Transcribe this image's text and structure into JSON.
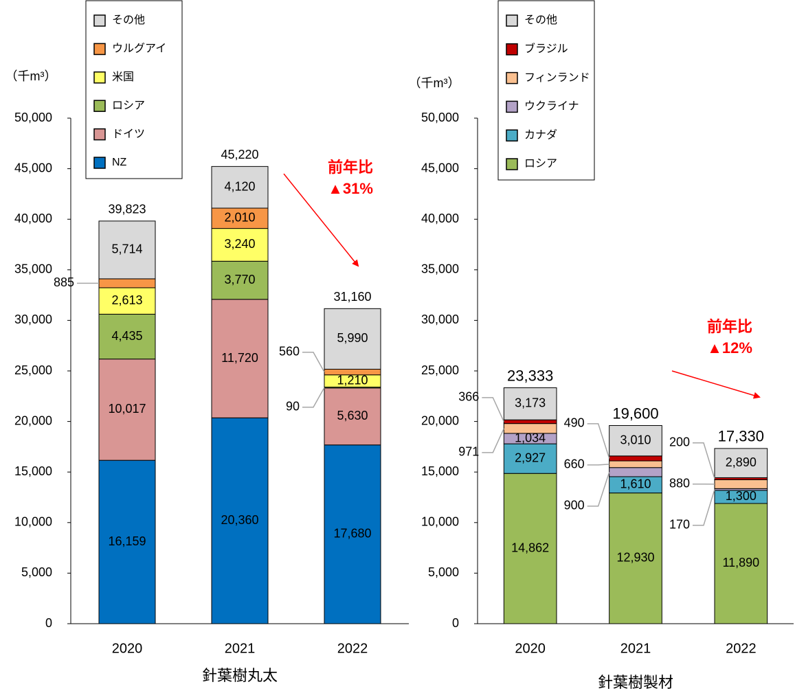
{
  "chart_data": [
    {
      "type": "bar",
      "stacked": true,
      "xlabel": "針葉樹丸太",
      "ylabel": "（千m³）",
      "categories": [
        "2020",
        "2021",
        "2022"
      ],
      "ylim": [
        0,
        50000
      ],
      "yticks": [
        0,
        {
          "value": 5000,
          "label": "5,000"
        },
        {
          "value": 10000,
          "label": "10,000"
        },
        {
          "value": 15000,
          "label": "15,000"
        },
        {
          "value": 20000,
          "label": "20,000"
        },
        {
          "value": 25000,
          "label": "25,000"
        },
        {
          "value": 30000,
          "label": "30,000"
        },
        {
          "value": 35000,
          "label": "35,000"
        },
        {
          "value": 40000,
          "label": "40,000"
        },
        {
          "value": 45000,
          "label": "45,000"
        },
        {
          "value": 50000,
          "label": "50,000"
        }
      ],
      "series": [
        {
          "name": "NZ",
          "color": "#0070c0",
          "values": [
            16159,
            20360,
            17680
          ],
          "value_labels": [
            "16,159",
            "20,360",
            "17,680"
          ]
        },
        {
          "name": "ドイツ",
          "color": "#d99694",
          "values": [
            10017,
            11720,
            5630
          ],
          "value_labels": [
            "10,017",
            "11,720",
            "5,630"
          ]
        },
        {
          "name": "ロシア",
          "color": "#9bbb59",
          "values": [
            4435,
            3770,
            90
          ],
          "value_labels": [
            "4,435",
            "3,770",
            "90"
          ]
        },
        {
          "name": "米国",
          "color": "#ffff66",
          "values": [
            2613,
            3240,
            1210
          ],
          "value_labels": [
            "2,613",
            "3,240",
            "1,210"
          ]
        },
        {
          "name": "ウルグアイ",
          "color": "#f79646",
          "values": [
            885,
            2010,
            560
          ],
          "value_labels": [
            "885",
            "2,010",
            "560"
          ]
        },
        {
          "name": "その他",
          "color": "#d9d9d9",
          "values": [
            5714,
            4120,
            5990
          ],
          "value_labels": [
            "5,714",
            "4,120",
            "5,990"
          ]
        }
      ],
      "totals": {
        "values": [
          39823,
          45220,
          31160
        ],
        "value_labels": [
          "39,823",
          "45,220",
          "31,160"
        ]
      },
      "annotation": [
        "前年比",
        "▲31%"
      ]
    },
    {
      "type": "bar",
      "stacked": true,
      "xlabel": "針葉樹製材",
      "ylabel": "（千m³）",
      "categories": [
        "2020",
        "2021",
        "2022"
      ],
      "ylim": [
        0,
        50000
      ],
      "yticks": [
        0,
        {
          "value": 5000,
          "label": "5,000"
        },
        {
          "value": 10000,
          "label": "10,000"
        },
        {
          "value": 15000,
          "label": "15,000"
        },
        {
          "value": 20000,
          "label": "20,000"
        },
        {
          "value": 25000,
          "label": "25,000"
        },
        {
          "value": 30000,
          "label": "30,000"
        },
        {
          "value": 35000,
          "label": "35,000"
        },
        {
          "value": 40000,
          "label": "40,000"
        },
        {
          "value": 45000,
          "label": "45,000"
        },
        {
          "value": 50000,
          "label": "50,000"
        }
      ],
      "series": [
        {
          "name": "ロシア",
          "color": "#9bbb59",
          "values": [
            14862,
            12930,
            11890
          ],
          "value_labels": [
            "14,862",
            "12,930",
            "11,890"
          ]
        },
        {
          "name": "カナダ",
          "color": "#4bacc6",
          "values": [
            2927,
            1610,
            1300
          ],
          "value_labels": [
            "2,927",
            "1,610",
            "1,300"
          ]
        },
        {
          "name": "ウクライナ",
          "color": "#b3a2c7",
          "values": [
            1034,
            900,
            170
          ],
          "value_labels": [
            "1,034",
            "900",
            "170"
          ]
        },
        {
          "name": "フィンランド",
          "color": "#fac090",
          "values": [
            971,
            660,
            880
          ],
          "value_labels": [
            "971",
            "660",
            "880"
          ]
        },
        {
          "name": "ブラジル",
          "color": "#c00000",
          "values": [
            366,
            490,
            200
          ],
          "value_labels": [
            "366",
            "490",
            "200"
          ]
        },
        {
          "name": "その他",
          "color": "#d9d9d9",
          "values": [
            3173,
            3010,
            2890
          ],
          "value_labels": [
            "3,173",
            "3,010",
            "2,890"
          ]
        }
      ],
      "totals": {
        "values": [
          23333,
          19600,
          17330
        ],
        "value_labels": [
          "23,333",
          "19,600",
          "17,330"
        ]
      },
      "annotation": [
        "前年比",
        "▲12%"
      ]
    }
  ]
}
